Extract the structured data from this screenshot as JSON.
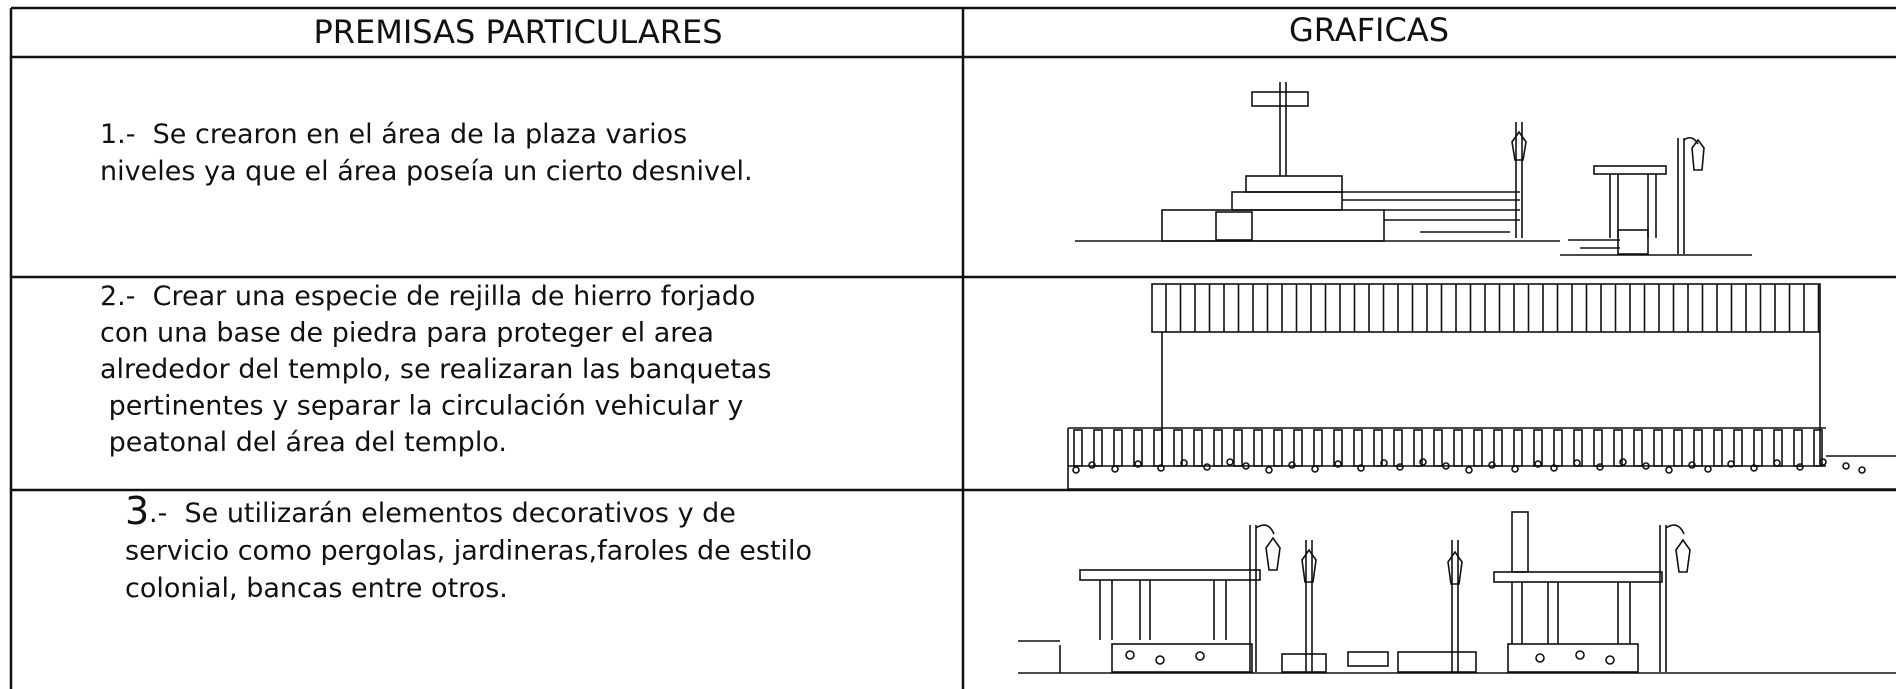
{
  "header": {
    "left": "PREMISAS PARTICULARES",
    "right": "GRAFICAS"
  },
  "rows": [
    {
      "lines": [
        "1.-  Se crearon en el área de la plaza varios",
        "niveles ya que el área poseía un cierto desnivel."
      ]
    },
    {
      "lines": [
        "2.-  Crear una especie de rejilla de hierro forjado",
        "con una base de piedra para proteger el area",
        "alrededor del templo, se realizaran las banquetas",
        " pertinentes y separar la circulación vehicular y",
        " peatonal del área del templo."
      ]
    },
    {
      "number": "3",
      "lines": [
        ".-  Se utilizarán elementos decorativos y de",
        "servicio como pergolas, jardineras,faroles de estilo",
        "colonial, bancas entre otros."
      ]
    }
  ]
}
